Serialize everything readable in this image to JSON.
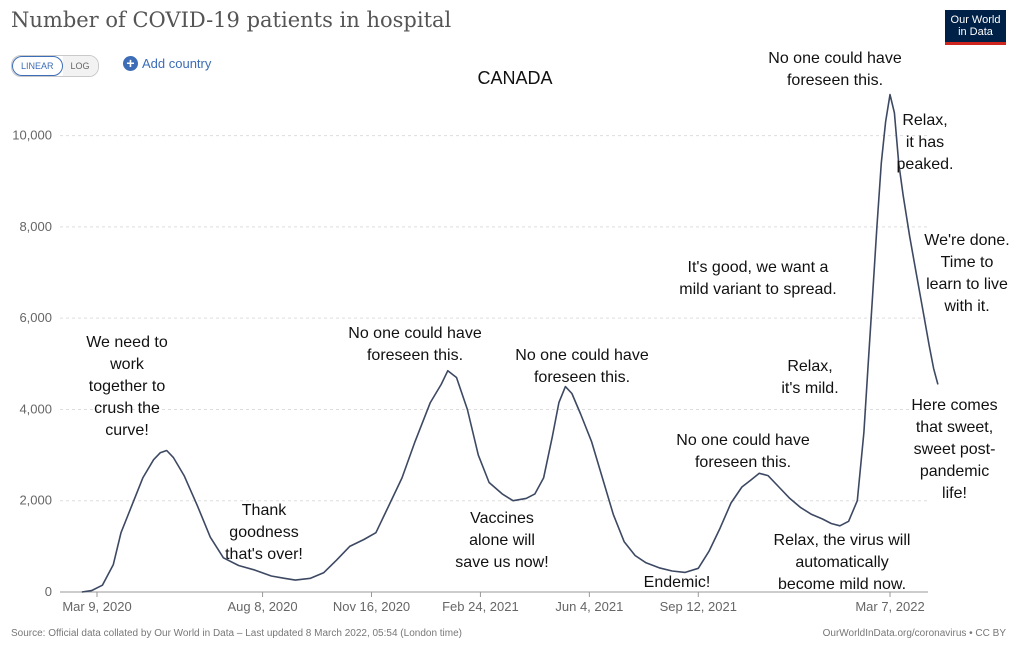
{
  "header": {
    "title": "Number of COVID-19 patients in hospital",
    "logo_line1": "Our World",
    "logo_line2": "in Data"
  },
  "controls": {
    "linear_label": "LINEAR",
    "log_label": "LOG",
    "add_country_label": "Add country"
  },
  "footer": {
    "source": "Source: Official data collated by Our World in Data – Last updated 8 March 2022, 05:54 (London time)",
    "license": "OurWorldInData.org/coronavirus • CC BY"
  },
  "chart_data": {
    "type": "line",
    "title": "Number of COVID-19 patients in hospital",
    "country_label": "CANADA",
    "ylim": [
      0,
      11000
    ],
    "yticks": [
      0,
      2000,
      4000,
      6000,
      8000,
      10000
    ],
    "ytick_labels": [
      "0",
      "2,000",
      "4,000",
      "6,000",
      "8,000",
      "10,000"
    ],
    "xtick_labels": [
      "Mar 9, 2020",
      "Aug 8, 2020",
      "Nov 16, 2020",
      "Feb 24, 2021",
      "Jun 4, 2021",
      "Sep 12, 2021",
      "Mar 7, 2022"
    ],
    "xtick_days": [
      0,
      152,
      252,
      352,
      452,
      552,
      728
    ],
    "x_range_days": [
      -14,
      728
    ],
    "series": [
      {
        "name": "Canada",
        "color": "#3d4963",
        "points": [
          [
            -14,
            0
          ],
          [
            -5,
            30
          ],
          [
            5,
            150
          ],
          [
            15,
            600
          ],
          [
            22,
            1300
          ],
          [
            32,
            1900
          ],
          [
            42,
            2500
          ],
          [
            52,
            2900
          ],
          [
            58,
            3050
          ],
          [
            64,
            3100
          ],
          [
            70,
            2950
          ],
          [
            80,
            2550
          ],
          [
            92,
            1900
          ],
          [
            104,
            1200
          ],
          [
            116,
            750
          ],
          [
            130,
            580
          ],
          [
            145,
            480
          ],
          [
            160,
            350
          ],
          [
            172,
            300
          ],
          [
            182,
            260
          ],
          [
            196,
            300
          ],
          [
            208,
            420
          ],
          [
            220,
            700
          ],
          [
            232,
            1000
          ],
          [
            245,
            1150
          ],
          [
            256,
            1300
          ],
          [
            266,
            1800
          ],
          [
            280,
            2500
          ],
          [
            292,
            3300
          ],
          [
            306,
            4150
          ],
          [
            316,
            4550
          ],
          [
            322,
            4850
          ],
          [
            330,
            4700
          ],
          [
            340,
            4000
          ],
          [
            350,
            3000
          ],
          [
            360,
            2400
          ],
          [
            372,
            2150
          ],
          [
            382,
            2000
          ],
          [
            394,
            2050
          ],
          [
            402,
            2150
          ],
          [
            410,
            2500
          ],
          [
            418,
            3400
          ],
          [
            424,
            4150
          ],
          [
            430,
            4500
          ],
          [
            436,
            4350
          ],
          [
            444,
            3900
          ],
          [
            454,
            3300
          ],
          [
            464,
            2500
          ],
          [
            474,
            1700
          ],
          [
            484,
            1100
          ],
          [
            494,
            800
          ],
          [
            504,
            640
          ],
          [
            516,
            530
          ],
          [
            528,
            460
          ],
          [
            540,
            430
          ],
          [
            552,
            520
          ],
          [
            562,
            900
          ],
          [
            572,
            1400
          ],
          [
            582,
            1950
          ],
          [
            592,
            2300
          ],
          [
            600,
            2450
          ],
          [
            608,
            2600
          ],
          [
            616,
            2550
          ],
          [
            626,
            2300
          ],
          [
            636,
            2050
          ],
          [
            646,
            1850
          ],
          [
            656,
            1700
          ],
          [
            666,
            1600
          ],
          [
            674,
            1500
          ],
          [
            682,
            1450
          ],
          [
            690,
            1550
          ],
          [
            698,
            2000
          ],
          [
            704,
            3500
          ],
          [
            708,
            5000
          ],
          [
            712,
            6500
          ],
          [
            716,
            8000
          ],
          [
            720,
            9400
          ],
          [
            724,
            10300
          ],
          [
            728,
            10900
          ],
          [
            732,
            10500
          ],
          [
            736,
            9400
          ],
          [
            740,
            8700
          ],
          [
            746,
            7800
          ],
          [
            752,
            7000
          ],
          [
            758,
            6200
          ],
          [
            764,
            5400
          ],
          [
            768,
            4900
          ],
          [
            772,
            4550
          ]
        ]
      }
    ],
    "annotations": [
      "We need to\nwork\ntogether to\ncrush the\ncurve!",
      "Thank\ngoodness\nthat's over!",
      "No one could have\nforeseen this.",
      "Vaccines\nalone will\nsave us now!",
      "No one could have\nforeseen this.",
      "Endemic!",
      "No one could have\nforeseen this.",
      "Relax, the virus will\nautomatically\nbecome mild now.",
      "It's good, we want a\nmild variant to spread.",
      "Relax,\nit's mild.",
      "No one could have\nforeseen this.",
      "Relax,\nit has\npeaked.",
      "We're done.\nTime to\nlearn to live\nwith it.",
      "Here comes\nthat sweet,\nsweet post-\npandemic\nlife!"
    ]
  }
}
